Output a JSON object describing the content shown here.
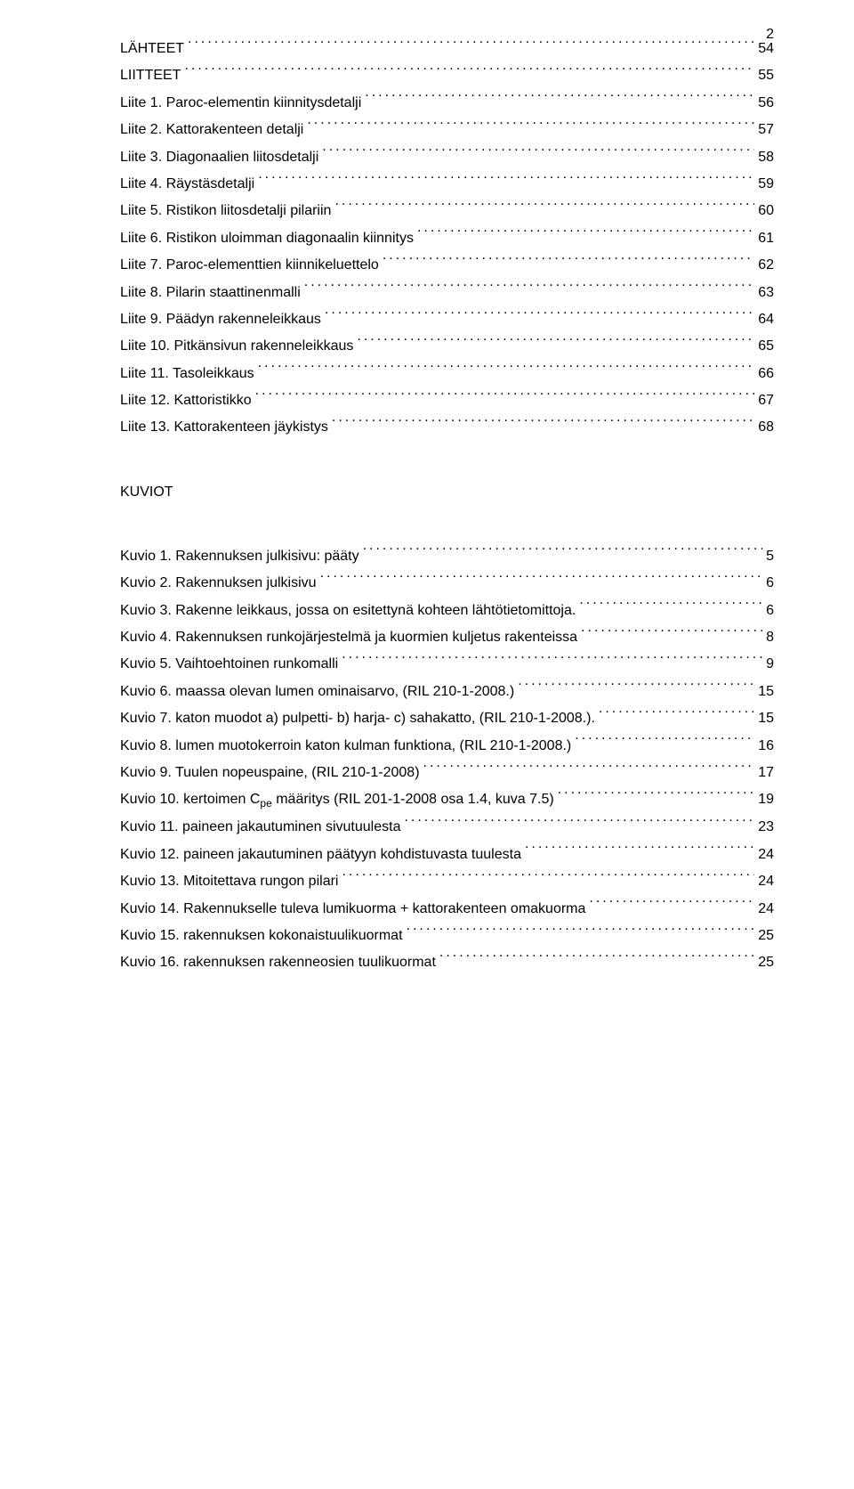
{
  "pageNumber": "2",
  "sectionHeading": "KUVIOT",
  "entriesTop": [
    {
      "label": "LÄHTEET",
      "page": "54"
    },
    {
      "label": "LIITTEET",
      "page": "55"
    },
    {
      "label": "Liite 1. Paroc-elementin kiinnitysdetalji",
      "page": "56"
    },
    {
      "label": "Liite 2. Kattorakenteen detalji",
      "page": "57"
    },
    {
      "label": "Liite 3. Diagonaalien liitosdetalji",
      "page": "58"
    },
    {
      "label": "Liite 4. Räystäsdetalji",
      "page": "59"
    },
    {
      "label": "Liite 5. Ristikon liitosdetalji pilariin",
      "page": "60"
    },
    {
      "label": "Liite 6. Ristikon uloimman diagonaalin kiinnitys",
      "page": "61"
    },
    {
      "label": "Liite 7. Paroc-elementtien kiinnikeluettelo",
      "page": "62"
    },
    {
      "label": "Liite 8. Pilarin staattinenmalli",
      "page": "63"
    },
    {
      "label": "Liite 9. Päädyn rakenneleikkaus",
      "page": "64"
    },
    {
      "label": "Liite 10. Pitkänsivun rakenneleikkaus",
      "page": "65"
    },
    {
      "label": "Liite 11. Tasoleikkaus",
      "page": "66"
    },
    {
      "label": "Liite 12. Kattoristikko",
      "page": "67"
    },
    {
      "label": "Liite 13. Kattorakenteen jäykistys",
      "page": "68"
    }
  ],
  "entriesBottom": [
    {
      "label": "Kuvio 1. Rakennuksen julkisivu: pääty",
      "page": "5"
    },
    {
      "label": "Kuvio 2. Rakennuksen julkisivu",
      "page": "6"
    },
    {
      "label": "Kuvio 3. Rakenne leikkaus, jossa on esitettynä kohteen lähtötietomittoja.",
      "page": "6"
    },
    {
      "label": "Kuvio 4. Rakennuksen runkojärjestelmä ja kuormien kuljetus rakenteissa",
      "page": "8"
    },
    {
      "label": "Kuvio 5. Vaihtoehtoinen runkomalli",
      "page": "9"
    },
    {
      "label": "Kuvio 6. maassa olevan lumen ominaisarvo, (RIL 210-1-2008.)",
      "page": "15"
    },
    {
      "label": "Kuvio 7. katon muodot a) pulpetti- b) harja- c) sahakatto, (RIL 210-1-2008.).",
      "page": "15"
    },
    {
      "label": "Kuvio 8. lumen muotokerroin katon kulman funktiona, (RIL 210-1-2008.)",
      "page": "16"
    },
    {
      "label": "Kuvio 9. Tuulen nopeuspaine, (RIL 210-1-2008)",
      "page": "17"
    },
    {
      "label": "Kuvio 10. kertoimen C<sub>pe</sub> määritys (RIL 201-1-2008 osa 1.4, kuva 7.5)",
      "page": "19",
      "html": true
    },
    {
      "label": "Kuvio 11. paineen jakautuminen sivutuulesta",
      "page": "23"
    },
    {
      "label": "Kuvio 12. paineen jakautuminen päätyyn kohdistuvasta tuulesta",
      "page": "24"
    },
    {
      "label": "Kuvio 13. Mitoitettava rungon pilari",
      "page": "24"
    },
    {
      "label": "Kuvio 14. Rakennukselle tuleva lumikuorma + kattorakenteen omakuorma",
      "page": "24"
    },
    {
      "label": "Kuvio 15. rakennuksen kokonaistuulikuormat",
      "page": "25"
    },
    {
      "label": "Kuvio 16. rakennuksen rakenneosien tuulikuormat",
      "page": "25"
    }
  ]
}
